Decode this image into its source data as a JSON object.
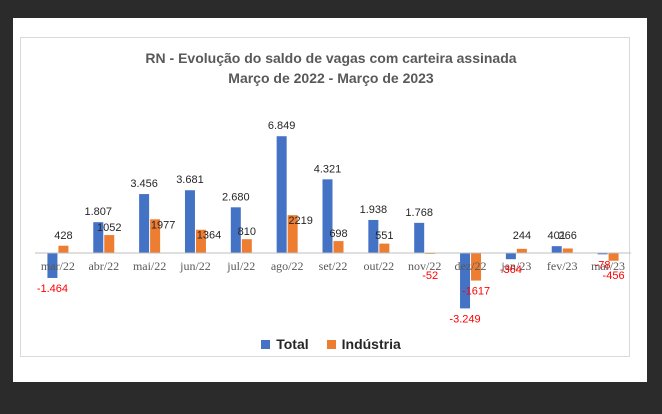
{
  "chart_data": {
    "type": "bar",
    "title": "RN - Evolução do saldo de vagas com carteira assinada",
    "subtitle": "Março de 2022 - Março de 2023",
    "categories": [
      "mar/22",
      "abr/22",
      "mai/22",
      "jun/22",
      "jul/22",
      "ago/22",
      "set/22",
      "out/22",
      "nov/22",
      "dez/22",
      "jan/23",
      "fev/23",
      "mar/23"
    ],
    "series": [
      {
        "name": "Total",
        "color": "#4472c4",
        "values": [
          -1464,
          1807,
          3456,
          3681,
          2680,
          6849,
          4321,
          1938,
          1768,
          -3249,
          -364,
          401,
          -78
        ],
        "labels": [
          "-1.464",
          "1.807",
          "3.456",
          "3.681",
          "2.680",
          "6.849",
          "4.321",
          "1.938",
          "1.768",
          "-3.249",
          "-364",
          "401",
          "-78"
        ]
      },
      {
        "name": "Indústria",
        "color": "#ed7d31",
        "values": [
          428,
          1052,
          1977,
          1364,
          810,
          2219,
          698,
          551,
          -52,
          -1617,
          244,
          266,
          -456
        ],
        "labels": [
          "428",
          "1052",
          "1977",
          "1364",
          "810",
          "2219",
          "698",
          "551",
          "-52",
          "-1617",
          "244",
          "266",
          "-456"
        ]
      }
    ],
    "negative_label_color": "#ff0000",
    "ylim": [
      -3500,
      7000
    ],
    "grid": false,
    "legend": "bottom-center"
  }
}
